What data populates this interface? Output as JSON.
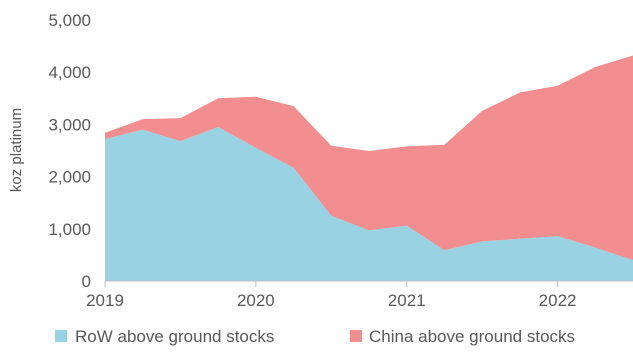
{
  "chart_data": {
    "type": "area",
    "stacked": true,
    "xlabel": "",
    "ylabel": "koz platinum",
    "xlim": [
      2019.0,
      2022.5
    ],
    "ylim": [
      0,
      5000
    ],
    "y_ticks": [
      0,
      1000,
      2000,
      3000,
      4000,
      5000
    ],
    "y_tick_labels": [
      "0",
      "1,000",
      "2,000",
      "3,000",
      "4,000",
      "5,000"
    ],
    "x_ticks": [
      2019,
      2020,
      2021,
      2022
    ],
    "x_tick_labels": [
      "2019",
      "2020",
      "2021",
      "2022"
    ],
    "x": [
      2019.0,
      2019.25,
      2019.5,
      2019.75,
      2020.0,
      2020.25,
      2020.5,
      2020.75,
      2021.0,
      2021.25,
      2021.5,
      2021.75,
      2022.0,
      2022.25,
      2022.5
    ],
    "series": [
      {
        "name": "RoW above ground stocks",
        "color": "#99d3e3",
        "values": [
          2720,
          2900,
          2680,
          2950,
          2550,
          2170,
          1250,
          970,
          1060,
          590,
          760,
          810,
          860,
          640,
          400
        ]
      },
      {
        "name": "China above ground stocks",
        "color": "#f28e8f",
        "values": [
          120,
          200,
          440,
          550,
          980,
          1180,
          1340,
          1520,
          1520,
          2020,
          2500,
          2800,
          2880,
          3460,
          3920
        ]
      }
    ],
    "legend_position": "bottom",
    "grid": false
  }
}
